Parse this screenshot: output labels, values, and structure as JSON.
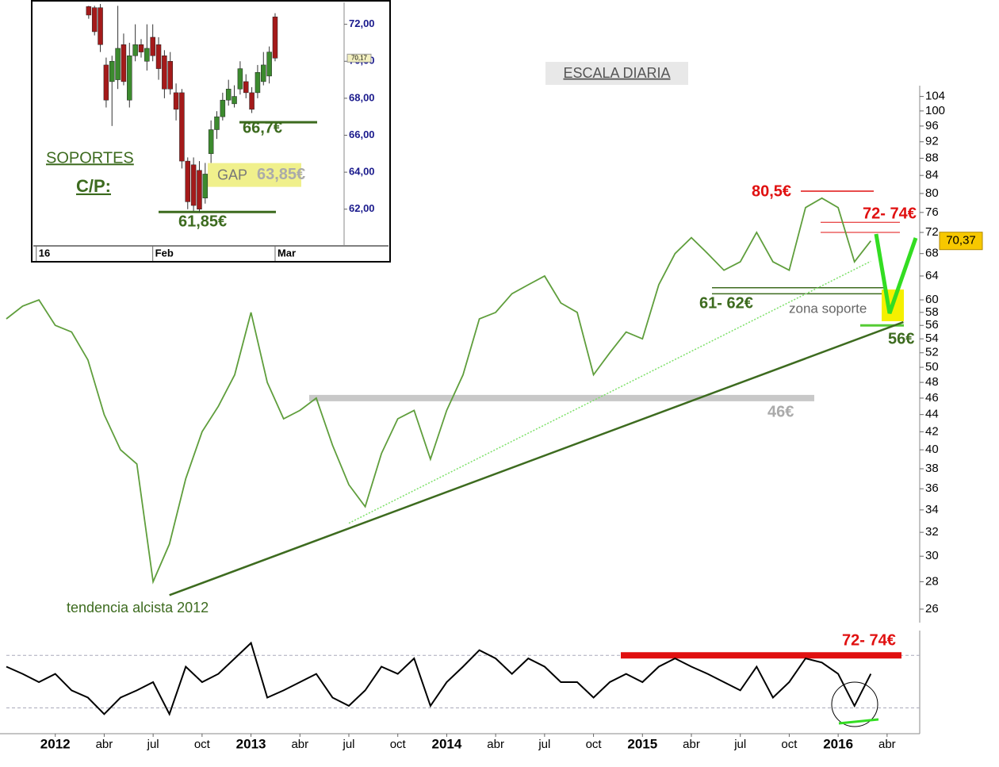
{
  "chart_data": [
    {
      "type": "line",
      "title": "ESCALA DIARIA",
      "log_scale": true,
      "color": "#5f9e3c",
      "x": [
        "2011-10",
        "2011-11",
        "2011-12",
        "2012-01",
        "2012-02",
        "2012-03",
        "2012-04",
        "2012-05",
        "2012-06",
        "2012-07",
        "2012-08",
        "2012-09",
        "2012-10",
        "2012-11",
        "2012-12",
        "2013-01",
        "2013-02",
        "2013-03",
        "2013-04",
        "2013-05",
        "2013-06",
        "2013-07",
        "2013-08",
        "2013-09",
        "2013-10",
        "2013-11",
        "2013-12",
        "2014-01",
        "2014-02",
        "2014-03",
        "2014-04",
        "2014-05",
        "2014-06",
        "2014-07",
        "2014-08",
        "2014-09",
        "2014-10",
        "2014-11",
        "2014-12",
        "2015-01",
        "2015-02",
        "2015-03",
        "2015-04",
        "2015-05",
        "2015-06",
        "2015-07",
        "2015-08",
        "2015-09",
        "2015-10",
        "2015-11",
        "2015-12",
        "2016-01",
        "2016-02",
        "2016-03"
      ],
      "values": [
        57,
        59,
        60,
        56,
        55,
        51,
        44,
        40,
        38.5,
        28,
        31,
        37,
        42,
        45,
        49,
        58,
        48,
        43.5,
        44.5,
        46,
        40.5,
        36.4,
        34.3,
        39.6,
        43.5,
        44.5,
        39,
        44.5,
        49,
        57,
        58,
        61,
        62.5,
        64,
        59.5,
        58,
        49,
        52,
        55,
        54,
        62.5,
        68,
        71,
        68,
        65,
        66.5,
        72,
        66.5,
        65,
        77,
        79,
        77,
        66.5,
        70.37
      ],
      "xlim": [
        "2011-10",
        "2016-06"
      ],
      "ylim": [
        25.5,
        108
      ],
      "yticks": [
        26,
        28,
        30,
        32,
        34,
        36,
        38,
        40,
        42,
        44,
        46,
        48,
        50,
        52,
        54,
        56,
        58,
        60,
        64,
        68,
        72,
        76,
        80,
        84,
        88,
        92,
        96,
        100,
        104
      ],
      "last_value": {
        "value": 70.37,
        "label": "70,37"
      },
      "levels": [
        {
          "values": [
            80.5
          ],
          "label": "80,5€",
          "color": "#e01010"
        },
        {
          "values": [
            72,
            74
          ],
          "label": "72- 74€",
          "color": "#e01010"
        },
        {
          "values": [
            61,
            62
          ],
          "label": "61- 62€",
          "color": "#3d6b1f"
        },
        {
          "values": [
            56
          ],
          "label": "56€",
          "color": "#55cc33"
        },
        {
          "values": [
            46
          ],
          "label": "46€",
          "color": "#c8c8c8"
        }
      ],
      "trendlines": [
        {
          "label": "tendencia alcista 2012",
          "x": [
            "2012-08",
            "2016-05"
          ],
          "values": [
            27,
            56.5
          ],
          "color": "#3d6b1f"
        },
        {
          "x": [
            "2013-07",
            "2016-03"
          ],
          "values": [
            32.8,
            66.6
          ],
          "color": "#7ee06a",
          "dashed": true
        }
      ],
      "annotation": "zona soporte"
    },
    {
      "type": "candlestick",
      "up_color": "#3c8a2e",
      "down_color": "#a41a1a",
      "open": [
        72.96,
        72.9,
        72.9,
        69.8,
        68.9,
        69.0,
        70.9,
        67.9,
        70.3,
        70.9,
        70.0,
        71.3,
        70.9,
        70.3,
        70.0,
        68.3,
        68.3,
        64.6,
        64.4,
        64.1,
        62.6,
        65.0,
        66.3,
        67.0,
        67.9,
        67.7,
        68.5,
        68.9,
        68.3,
        68.3,
        68.9,
        69.2,
        72.4
      ],
      "high": [
        73.0,
        73.0,
        73.1,
        70.2,
        70.3,
        73.0,
        71.5,
        71.0,
        72.0,
        71.2,
        72.0,
        72.0,
        71.3,
        70.6,
        70.5,
        68.8,
        68.5,
        64.8,
        64.8,
        64.6,
        64.5,
        66.8,
        67.3,
        68.3,
        69.0,
        68.7,
        70.0,
        69.3,
        68.6,
        69.8,
        70.5,
        70.8,
        72.6
      ],
      "low": [
        72.3,
        71.4,
        70.5,
        67.5,
        66.5,
        68.5,
        68.7,
        67.5,
        70.0,
        70.2,
        69.5,
        70.0,
        69.0,
        68.0,
        68.2,
        66.8,
        64.2,
        62.0,
        61.9,
        61.85,
        62.3,
        64.5,
        65.8,
        66.8,
        67.6,
        67.5,
        68.2,
        68.0,
        67.2,
        68.0,
        68.7,
        68.8,
        70.0
      ],
      "close": [
        72.5,
        71.6,
        70.9,
        67.9,
        70.0,
        70.7,
        68.9,
        70.3,
        70.9,
        70.5,
        70.7,
        70.3,
        69.6,
        68.5,
        68.5,
        67.4,
        64.6,
        62.4,
        62.2,
        62.0,
        63.9,
        66.3,
        67.0,
        67.9,
        68.5,
        68.1,
        69.6,
        68.3,
        67.4,
        69.4,
        69.8,
        70.5,
        70.17
      ],
      "xlim": [
        -9.1,
        43.3
      ],
      "xticks": [
        {
          "value": -9,
          "label": "16"
        },
        {
          "value": 11,
          "label": "Feb"
        },
        {
          "value": 32,
          "label": "Mar"
        }
      ],
      "ylim": [
        60.1,
        73.1
      ],
      "yticks": [
        {
          "value": 62,
          "label": "62,00"
        },
        {
          "value": 64,
          "label": "64,00"
        },
        {
          "value": 66,
          "label": "66,00"
        },
        {
          "value": 68,
          "label": "68,00"
        },
        {
          "value": 70,
          "label": "70,00"
        },
        {
          "value": 72,
          "label": "72,00"
        }
      ],
      "last_value": {
        "value": 70.17,
        "label": "70,17"
      },
      "levels": [
        {
          "value": 66.7,
          "label": "66,7€",
          "color": "#3d6b1f"
        },
        {
          "value": 61.85,
          "label": "61,85€",
          "color": "#3d6b1f"
        }
      ],
      "gap": {
        "value": 63.85,
        "label": "63,85€",
        "text": "GAP",
        "color": "#f0f08c"
      },
      "texts": [
        "SOPORTES",
        "C/P:"
      ]
    },
    {
      "type": "line",
      "color": "#000000",
      "x": [
        "2011-10",
        "2011-11",
        "2011-12",
        "2012-01",
        "2012-02",
        "2012-03",
        "2012-04",
        "2012-05",
        "2012-06",
        "2012-07",
        "2012-08",
        "2012-09",
        "2012-10",
        "2012-11",
        "2012-12",
        "2013-01",
        "2013-02",
        "2013-03",
        "2013-04",
        "2013-05",
        "2013-06",
        "2013-07",
        "2013-08",
        "2013-09",
        "2013-10",
        "2013-11",
        "2013-12",
        "2014-01",
        "2014-02",
        "2014-03",
        "2014-04",
        "2014-05",
        "2014-06",
        "2014-07",
        "2014-08",
        "2014-09",
        "2014-10",
        "2014-11",
        "2014-12",
        "2015-01",
        "2015-02",
        "2015-03",
        "2015-04",
        "2015-05",
        "2015-06",
        "2015-07",
        "2015-08",
        "2015-09",
        "2015-10",
        "2015-11",
        "2015-12",
        "2016-01",
        "2016-02",
        "2016-03"
      ],
      "values": [
        65,
        58,
        50,
        58,
        42,
        35,
        19,
        35,
        42,
        50,
        19,
        65,
        50,
        58,
        73,
        88,
        35,
        42,
        50,
        58,
        35,
        27,
        42,
        65,
        58,
        73,
        27,
        50,
        65,
        81,
        73,
        58,
        73,
        65,
        50,
        50,
        35,
        50,
        58,
        50,
        65,
        73,
        65,
        58,
        50,
        42,
        65,
        35,
        50,
        73,
        69,
        58,
        27,
        58
      ],
      "xlim": [
        "2011-10",
        "2016-06"
      ],
      "ylim": [
        0,
        100
      ],
      "xticks": [
        {
          "value": "2012-01",
          "label": "2012"
        },
        {
          "value": "2012-04",
          "label": "abr"
        },
        {
          "value": "2012-07",
          "label": "jul"
        },
        {
          "value": "2012-10",
          "label": "oct"
        },
        {
          "value": "2013-01",
          "label": "2013"
        },
        {
          "value": "2013-04",
          "label": "abr"
        },
        {
          "value": "2013-07",
          "label": "jul"
        },
        {
          "value": "2013-10",
          "label": "oct"
        },
        {
          "value": "2014-01",
          "label": "2014"
        },
        {
          "value": "2014-04",
          "label": "abr"
        },
        {
          "value": "2014-07",
          "label": "jul"
        },
        {
          "value": "2014-10",
          "label": "oct"
        },
        {
          "value": "2015-01",
          "label": "2015"
        },
        {
          "value": "2015-04",
          "label": "abr"
        },
        {
          "value": "2015-07",
          "label": "jul"
        },
        {
          "value": "2015-10",
          "label": "oct"
        },
        {
          "value": "2016-01",
          "label": "2016"
        },
        {
          "value": "2016-04",
          "label": "abr"
        }
      ],
      "guides": [
        76,
        25
      ],
      "levels": [
        {
          "value": 76,
          "label": "72- 74€",
          "color": "#e01010"
        }
      ]
    }
  ]
}
